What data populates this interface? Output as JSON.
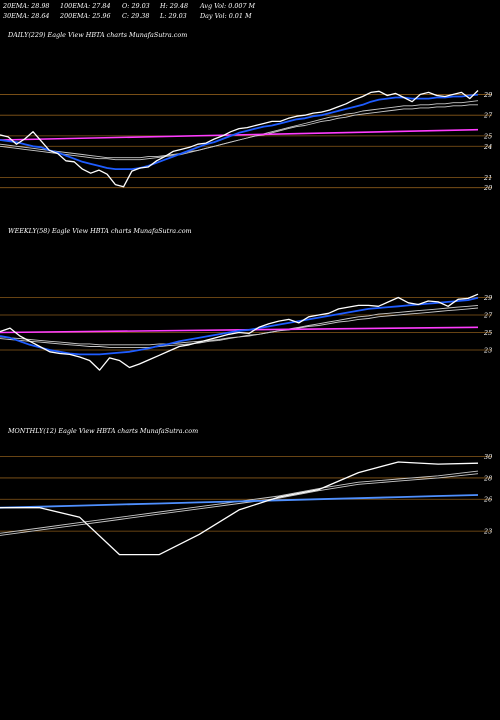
{
  "header": {
    "row1": [
      {
        "label": "20EMA:",
        "value": "28.98"
      },
      {
        "label": "100EMA:",
        "value": "27.84"
      },
      {
        "label": "O:",
        "value": "29.03"
      },
      {
        "label": "H:",
        "value": "29.48"
      },
      {
        "label": "Avg Vol:",
        "value": "0.007 M"
      }
    ],
    "row2": [
      {
        "label": "30EMA:",
        "value": "28.64"
      },
      {
        "label": "200EMA:",
        "value": "25.96"
      },
      {
        "label": "C:",
        "value": "29.38"
      },
      {
        "label": "L:",
        "value": "29.03"
      },
      {
        "label": "Day Vol:",
        "value": "0.01 M"
      }
    ]
  },
  "colors": {
    "background": "#000000",
    "price": "#ffffff",
    "ema_blue": "#1e5cff",
    "ema_slow": "#c8c8c8",
    "trend_magenta": "#ff3cff",
    "trend_blue": "#4f90ff",
    "level_line": "#8a5a1a"
  },
  "chart_data": [
    {
      "type": "line",
      "title": "DAILY(229) Eagle   View  HBTA charts MunafaSutra.com",
      "y_ticks": [
        "29",
        "27",
        "25",
        "24",
        "21",
        "20"
      ],
      "levels": [
        29,
        27,
        25,
        24,
        21,
        20
      ],
      "ylim": [
        19.2,
        30.2
      ],
      "series": [
        {
          "role": "price",
          "values": [
            25.1,
            24.9,
            24.2,
            24.7,
            25.4,
            24.5,
            23.6,
            23.3,
            22.6,
            22.5,
            21.8,
            21.4,
            21.7,
            21.3,
            20.3,
            20.1,
            21.6,
            21.9,
            22.0,
            22.6,
            23.0,
            23.5,
            23.7,
            23.9,
            24.2,
            24.3,
            24.7,
            25.0,
            25.4,
            25.7,
            25.8,
            26.0,
            26.2,
            26.4,
            26.4,
            26.7,
            26.9,
            27.0,
            27.2,
            27.3,
            27.5,
            27.8,
            28.1,
            28.5,
            28.8,
            29.2,
            29.3,
            28.9,
            29.1,
            28.7,
            28.3,
            29.0,
            29.2,
            28.9,
            28.8,
            29.0,
            29.2,
            28.6,
            29.38
          ]
        },
        {
          "role": "fast-ema",
          "values": [
            24.6,
            24.5,
            24.4,
            24.2,
            24.0,
            23.9,
            23.6,
            23.4,
            23.1,
            22.8,
            22.5,
            22.3,
            22.1,
            21.9,
            21.8,
            21.8,
            21.8,
            21.9,
            22.1,
            22.4,
            22.7,
            23.0,
            23.3,
            23.6,
            23.9,
            24.2,
            24.4,
            24.7,
            25.0,
            25.3,
            25.5,
            25.7,
            25.9,
            26.0,
            26.2,
            26.4,
            26.6,
            26.7,
            26.9,
            27.0,
            27.2,
            27.4,
            27.6,
            27.8,
            28.0,
            28.3,
            28.5,
            28.6,
            28.7,
            28.7,
            28.6,
            28.6,
            28.6,
            28.7,
            28.7,
            28.8,
            28.8,
            28.9,
            28.98
          ]
        },
        {
          "role": "slow-ema-1",
          "values": [
            24.0,
            23.9,
            23.8,
            23.7,
            23.6,
            23.5,
            23.4,
            23.3,
            23.2,
            23.1,
            23.0,
            22.9,
            22.8,
            22.8,
            22.7,
            22.7,
            22.7,
            22.7,
            22.8,
            22.9,
            23.0,
            23.1,
            23.2,
            23.4,
            23.6,
            23.8,
            24.0,
            24.2,
            24.4,
            24.6,
            24.8,
            25.0,
            25.2,
            25.4,
            25.6,
            25.8,
            26.0,
            26.2,
            26.4,
            26.6,
            26.8,
            26.9,
            27.1,
            27.2,
            27.4,
            27.5,
            27.6,
            27.7,
            27.8,
            27.9,
            27.9,
            28.0,
            28.0,
            28.1,
            28.1,
            28.2,
            28.2,
            28.3,
            28.4
          ]
        },
        {
          "role": "slow-ema-2",
          "values": [
            24.2,
            24.1,
            24.0,
            23.9,
            23.8,
            23.7,
            23.6,
            23.5,
            23.4,
            23.3,
            23.2,
            23.1,
            23.0,
            22.9,
            22.9,
            22.9,
            22.9,
            22.9,
            23.0,
            23.0,
            23.1,
            23.2,
            23.3,
            23.5,
            23.6,
            23.8,
            24.0,
            24.2,
            24.4,
            24.6,
            24.8,
            25.0,
            25.1,
            25.3,
            25.5,
            25.7,
            25.9,
            26.0,
            26.2,
            26.4,
            26.5,
            26.7,
            26.8,
            27.0,
            27.1,
            27.2,
            27.3,
            27.4,
            27.5,
            27.6,
            27.6,
            27.7,
            27.7,
            27.8,
            27.8,
            27.9,
            27.9,
            28.0,
            28.0
          ]
        },
        {
          "role": "trend",
          "values": [
            24.6,
            25.6
          ]
        }
      ]
    },
    {
      "type": "line",
      "title": "WEEKLY(58) Eagle   View  HBTA charts MunafaSutra.com",
      "y_ticks": [
        "29",
        "27",
        "25",
        "23"
      ],
      "levels": [
        29,
        27,
        25,
        23
      ],
      "ylim": [
        19.8,
        31.0
      ],
      "series": [
        {
          "role": "price",
          "values": [
            25.1,
            25.5,
            24.6,
            24.0,
            23.4,
            22.8,
            22.6,
            22.5,
            22.2,
            21.8,
            20.7,
            22.1,
            21.8,
            21.0,
            21.4,
            21.9,
            22.4,
            22.9,
            23.4,
            23.6,
            23.9,
            24.2,
            24.5,
            24.8,
            25.0,
            24.9,
            25.6,
            26.0,
            26.3,
            26.5,
            26.1,
            26.8,
            27.0,
            27.2,
            27.7,
            27.9,
            28.1,
            28.1,
            28.0,
            28.5,
            29.0,
            28.4,
            28.2,
            28.6,
            28.5,
            28.0,
            28.8,
            28.9,
            29.38
          ]
        },
        {
          "role": "fast-ema",
          "values": [
            24.6,
            24.4,
            24.0,
            23.6,
            23.3,
            23.0,
            22.8,
            22.6,
            22.5,
            22.5,
            22.5,
            22.6,
            22.7,
            22.8,
            23.0,
            23.2,
            23.5,
            23.7,
            24.0,
            24.2,
            24.4,
            24.6,
            24.8,
            25.0,
            25.2,
            25.3,
            25.5,
            25.7,
            25.9,
            26.1,
            26.3,
            26.5,
            26.7,
            26.9,
            27.1,
            27.3,
            27.5,
            27.7,
            27.8,
            27.9,
            28.0,
            28.1,
            28.2,
            28.3,
            28.4,
            28.5,
            28.6,
            28.7,
            28.98
          ]
        },
        {
          "role": "slow-ema-1",
          "values": [
            24.3,
            24.2,
            24.1,
            24.0,
            23.9,
            23.8,
            23.7,
            23.6,
            23.5,
            23.4,
            23.4,
            23.3,
            23.3,
            23.3,
            23.3,
            23.3,
            23.4,
            23.5,
            23.6,
            23.7,
            23.8,
            24.0,
            24.1,
            24.3,
            24.5,
            24.6,
            24.8,
            25.0,
            25.2,
            25.4,
            25.6,
            25.8,
            26.0,
            26.2,
            26.4,
            26.6,
            26.8,
            26.9,
            27.1,
            27.2,
            27.3,
            27.4,
            27.5,
            27.6,
            27.7,
            27.8,
            27.9,
            28.0,
            28.1
          ]
        },
        {
          "role": "slow-ema-2",
          "values": [
            24.5,
            24.4,
            24.3,
            24.2,
            24.1,
            24.0,
            23.9,
            23.8,
            23.7,
            23.7,
            23.6,
            23.6,
            23.6,
            23.6,
            23.6,
            23.6,
            23.7,
            23.7,
            23.8,
            23.9,
            24.0,
            24.1,
            24.2,
            24.4,
            24.5,
            24.7,
            24.8,
            25.0,
            25.2,
            25.3,
            25.5,
            25.7,
            25.8,
            26.0,
            26.2,
            26.3,
            26.5,
            26.6,
            26.8,
            26.9,
            27.0,
            27.1,
            27.2,
            27.3,
            27.4,
            27.5,
            27.6,
            27.7,
            27.8
          ]
        },
        {
          "role": "trend",
          "values": [
            25.0,
            25.6
          ]
        }
      ]
    },
    {
      "type": "line",
      "title": "MONTHLY(12) Eagle   View  HBTA charts MunafaSutra.com",
      "y_ticks": [
        "30",
        "28",
        "26",
        "23"
      ],
      "levels": [
        30,
        28,
        26,
        23
      ],
      "ylim": [
        18.6,
        31.0
      ],
      "series": [
        {
          "role": "price",
          "values": [
            25.2,
            25.2,
            24.3,
            20.8,
            20.8,
            22.7,
            25.0,
            26.2,
            26.9,
            28.5,
            29.5,
            29.3,
            29.38
          ]
        },
        {
          "role": "fast-ema",
          "values": [
            25.2,
            25.3,
            25.4,
            25.5,
            25.6,
            25.7,
            25.8,
            25.9,
            26.0,
            26.1,
            26.2,
            26.3,
            26.4
          ]
        },
        {
          "role": "slow-ema-1",
          "values": [
            22.8,
            23.3,
            23.8,
            24.3,
            24.8,
            25.3,
            25.8,
            26.3,
            27.0,
            27.6,
            27.9,
            28.2,
            28.64
          ]
        },
        {
          "role": "slow-ema-2",
          "values": [
            22.6,
            23.1,
            23.6,
            24.1,
            24.6,
            25.1,
            25.6,
            26.1,
            26.8,
            27.4,
            27.7,
            28.0,
            28.4
          ]
        }
      ]
    }
  ]
}
